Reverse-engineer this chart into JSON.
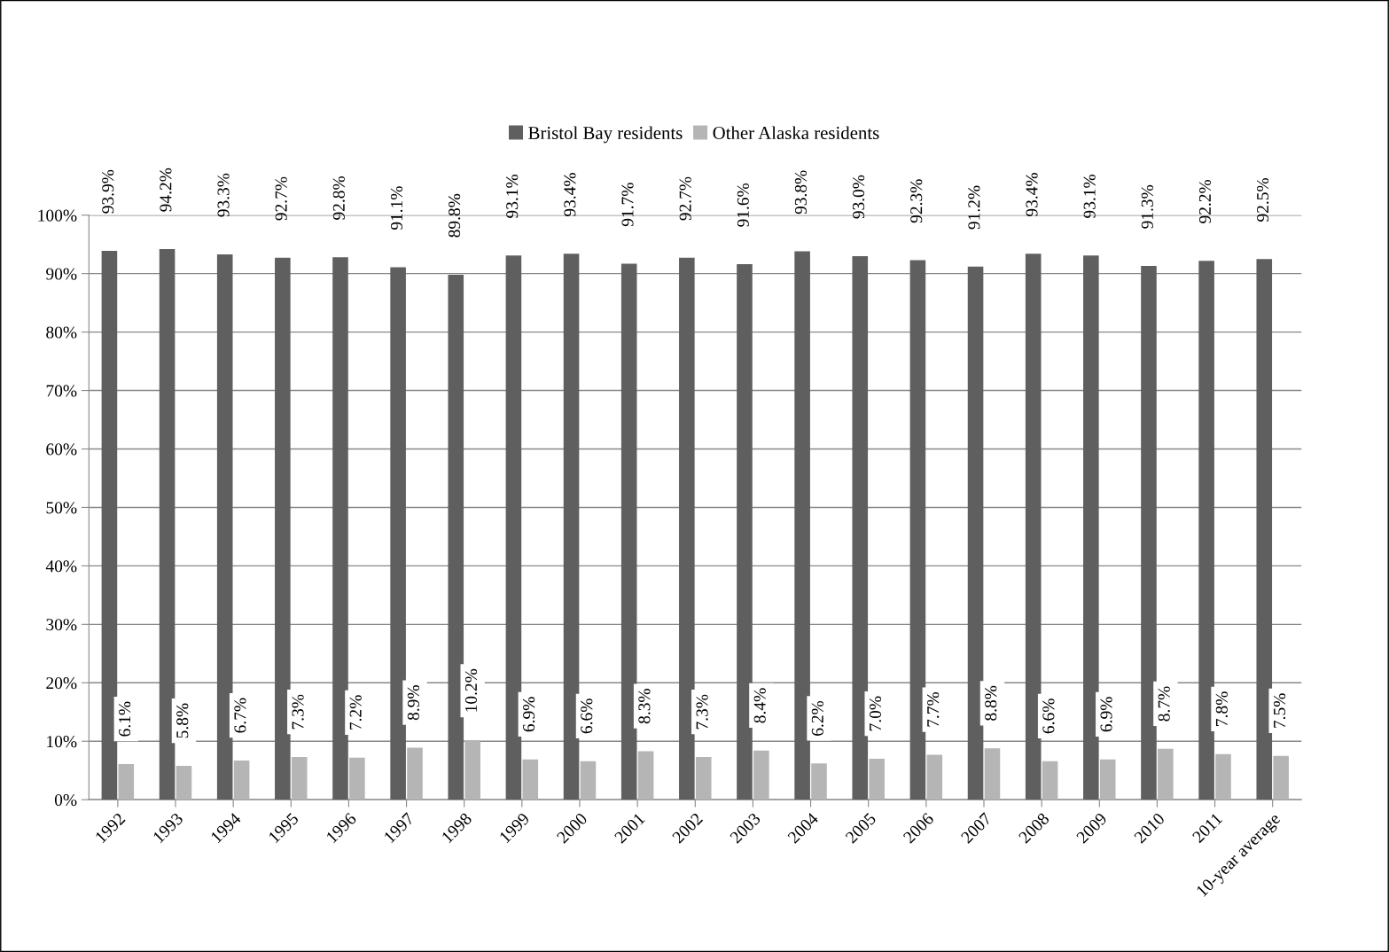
{
  "chart_data": {
    "type": "bar",
    "categories": [
      "1992",
      "1993",
      "1994",
      "1995",
      "1996",
      "1997",
      "1998",
      "1999",
      "2000",
      "2001",
      "2002",
      "2003",
      "2004",
      "2005",
      "2006",
      "2007",
      "2008",
      "2009",
      "2010",
      "2011",
      "10-year average"
    ],
    "series": [
      {
        "name": "Bristol Bay residents",
        "color": "#5f5f5f",
        "values": [
          93.9,
          94.2,
          93.3,
          92.7,
          92.8,
          91.1,
          89.8,
          93.1,
          93.4,
          91.7,
          92.7,
          91.6,
          93.8,
          93.0,
          92.3,
          91.2,
          93.4,
          93.1,
          91.3,
          92.2,
          92.5
        ],
        "value_labels": [
          "93.9%",
          "94.2%",
          "93.3%",
          "92.7%",
          "92.8%",
          "91.1%",
          "89.8%",
          "93.1%",
          "93.4%",
          "91.7%",
          "92.7%",
          "91.6%",
          "93.8%",
          "93.0%",
          "92.3%",
          "91.2%",
          "93.4%",
          "93.1%",
          "91.3%",
          "92.2%",
          "92.5%"
        ]
      },
      {
        "name": "Other Alaska residents",
        "color": "#b5b5b5",
        "values": [
          6.1,
          5.8,
          6.7,
          7.3,
          7.2,
          8.9,
          10.2,
          6.9,
          6.6,
          8.3,
          7.3,
          8.4,
          6.2,
          7.0,
          7.7,
          8.8,
          6.6,
          6.9,
          8.7,
          7.8,
          7.5
        ],
        "value_labels": [
          "6.1%",
          "5.8%",
          "6.7%",
          "7.3%",
          "7.2%",
          "8.9%",
          "10.2%",
          "6.9%",
          "6.6%",
          "8.3%",
          "7.3%",
          "8.4%",
          "6.2%",
          "7.0%",
          "7.7%",
          "8.8%",
          "6.6%",
          "6.9%",
          "8.7%",
          "7.8%",
          "7.5%"
        ]
      }
    ],
    "ylim": [
      0,
      100
    ],
    "yticks": [
      {
        "value": 0,
        "label": "0%"
      },
      {
        "value": 10,
        "label": "10%"
      },
      {
        "value": 20,
        "label": "20%"
      },
      {
        "value": 30,
        "label": "30%"
      },
      {
        "value": 40,
        "label": "40%"
      },
      {
        "value": 50,
        "label": "50%"
      },
      {
        "value": 60,
        "label": "60%"
      },
      {
        "value": 70,
        "label": "70%"
      },
      {
        "value": 80,
        "label": "80%"
      },
      {
        "value": 90,
        "label": "90%"
      },
      {
        "value": 100,
        "label": "100%"
      }
    ],
    "grid": "y",
    "legend": "top"
  }
}
